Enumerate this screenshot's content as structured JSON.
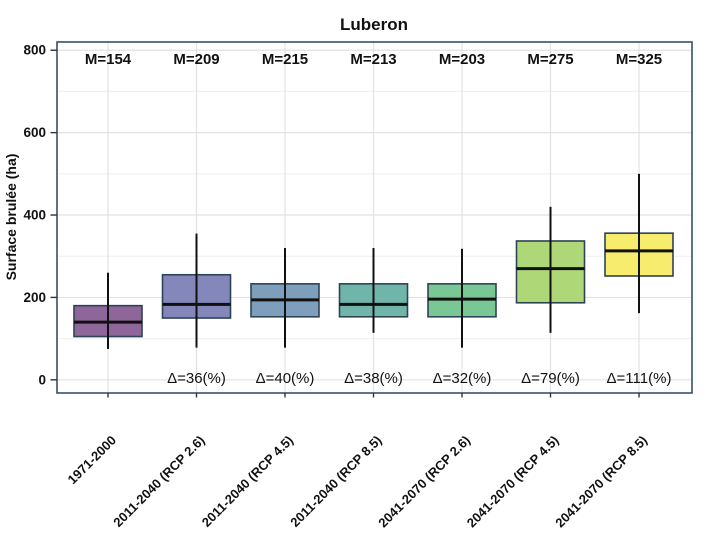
{
  "chart_data": {
    "type": "boxplot",
    "title": "Luberon",
    "ylabel": "Surface brulée (ha)",
    "xlabel": "",
    "ylim": [
      -32,
      820
    ],
    "yticks": [
      0,
      200,
      400,
      600,
      800
    ],
    "grid": {
      "horizontal_every": 100,
      "major_every": 200,
      "vertical_at_categories": true
    },
    "legend": "none",
    "categories": [
      "1971-2000",
      "2011-2040 (RCP 2.6)",
      "2011-2040 (RCP 4.5)",
      "2011-2040 (RCP 8.5)",
      "2041-2070 (RCP 2.6)",
      "2041-2070 (RCP 4.5)",
      "2041-2070 (RCP 8.5)"
    ],
    "series": [
      {
        "category": "1971-2000",
        "mean": 154,
        "mean_label": "M=154",
        "delta_label": "",
        "whisker_low": 75,
        "q1": 105,
        "median": 140,
        "q3": 180,
        "whisker_high": 260,
        "color": "#8f6699"
      },
      {
        "category": "2011-2040 (RCP 2.6)",
        "mean": 209,
        "mean_label": "M=209",
        "delta_label": "Δ=36(%)",
        "whisker_low": 78,
        "q1": 150,
        "median": 183,
        "q3": 255,
        "whisker_high": 355,
        "color": "#8487b9"
      },
      {
        "category": "2011-2040 (RCP 4.5)",
        "mean": 215,
        "mean_label": "M=215",
        "delta_label": "Δ=40(%)",
        "whisker_low": 78,
        "q1": 153,
        "median": 194,
        "q3": 233,
        "whisker_high": 320,
        "color": "#7d9fbc"
      },
      {
        "category": "2011-2040 (RCP 8.5)",
        "mean": 213,
        "mean_label": "M=213",
        "delta_label": "Δ=38(%)",
        "whisker_low": 114,
        "q1": 153,
        "median": 183,
        "q3": 233,
        "whisker_high": 320,
        "color": "#70b5aa"
      },
      {
        "category": "2041-2070 (RCP 2.6)",
        "mean": 203,
        "mean_label": "M=203",
        "delta_label": "Δ=32(%)",
        "whisker_low": 78,
        "q1": 153,
        "median": 196,
        "q3": 233,
        "whisker_high": 318,
        "color": "#79c795"
      },
      {
        "category": "2041-2070 (RCP 4.5)",
        "mean": 275,
        "mean_label": "M=275",
        "delta_label": "Δ=79(%)",
        "whisker_low": 114,
        "q1": 187,
        "median": 270,
        "q3": 337,
        "whisker_high": 420,
        "color": "#aed878"
      },
      {
        "category": "2041-2070 (RCP 8.5)",
        "mean": 325,
        "mean_label": "M=325",
        "delta_label": "Δ=111(%)",
        "whisker_low": 162,
        "q1": 252,
        "median": 313,
        "q3": 356,
        "whisker_high": 500,
        "color": "#f8ec6e"
      }
    ],
    "colors": {
      "panel_border": "#3a5068",
      "box_stroke": "#2f4356",
      "line": "#111111",
      "grid_major": "#e2e2e2",
      "grid_minor": "#efefef"
    }
  }
}
